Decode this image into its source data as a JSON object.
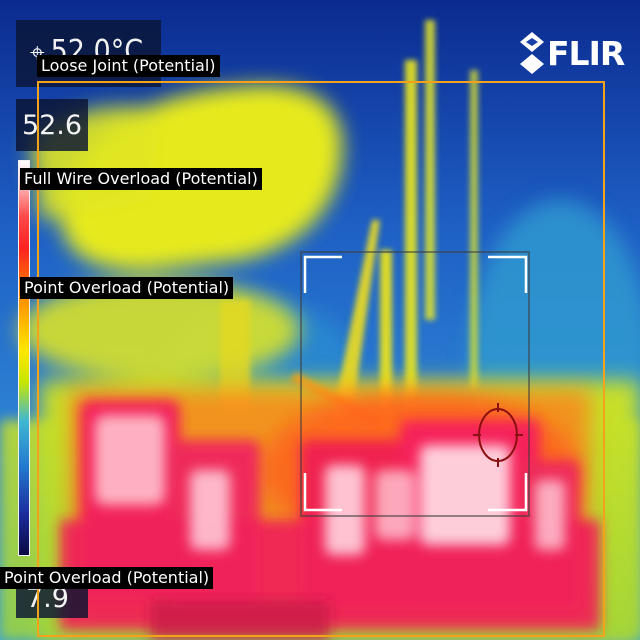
{
  "camera": {
    "brand": "FLIR",
    "logo_icon": "flir-diamond-logo",
    "palette": "rainbow-hc"
  },
  "readouts": {
    "spot_temperature": "52.0°C",
    "scale_max": "52.6",
    "scale_min": "7.9"
  },
  "annotations": [
    {
      "label": "Loose Joint (Potential)",
      "color": "#f2a31b"
    },
    {
      "label": "Full Wire Overload (Potential)"
    },
    {
      "label": "Point Overload (Potential)"
    },
    {
      "label": "Point Overload (Potential)"
    }
  ],
  "colors": {
    "roi_box": "#f2a31b",
    "label_background": "#000000",
    "label_text": "#ffffff",
    "crosshair": "#8b1010"
  },
  "icons": [
    "spot-meter-icon",
    "crosshair-icon",
    "measurement-frame-icon",
    "color-scale-bar"
  ]
}
